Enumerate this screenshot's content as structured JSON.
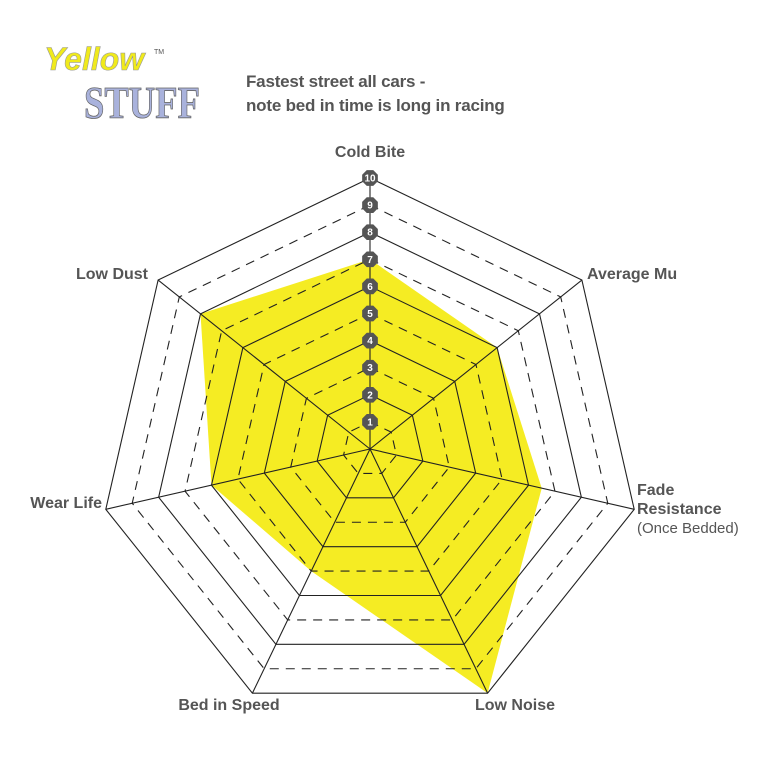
{
  "logo": {
    "text_top": "Yellow",
    "text_bottom": "STUFF",
    "mark": "TM",
    "colors": {
      "top": "#f0ea1c",
      "bottom": "#a9b2dc"
    }
  },
  "chart_data": {
    "type": "radar",
    "title_lines": [
      "Fastest street all cars -",
      "note bed in time is long in racing"
    ],
    "axes": [
      {
        "label": "Cold Bite",
        "sub": ""
      },
      {
        "label": "Average Mu",
        "sub": ""
      },
      {
        "label": "Fade",
        "label2": "Resistance",
        "sub": "(Once Bedded)"
      },
      {
        "label": "Low Noise",
        "sub": ""
      },
      {
        "label": "Bed in Speed",
        "sub": ""
      },
      {
        "label": "Wear Life",
        "sub": ""
      },
      {
        "label": "Low Dust",
        "sub": ""
      }
    ],
    "values": [
      7,
      6,
      6.5,
      10,
      5,
      6,
      8
    ],
    "range": [
      0,
      10
    ],
    "ticks": [
      "1",
      "2",
      "3",
      "4",
      "5",
      "6",
      "7",
      "8",
      "9",
      "10"
    ],
    "grid": "solid on even levels, dashed on odd levels",
    "fill_color": "#f5ec23",
    "tick_marker_color": "#555555"
  }
}
